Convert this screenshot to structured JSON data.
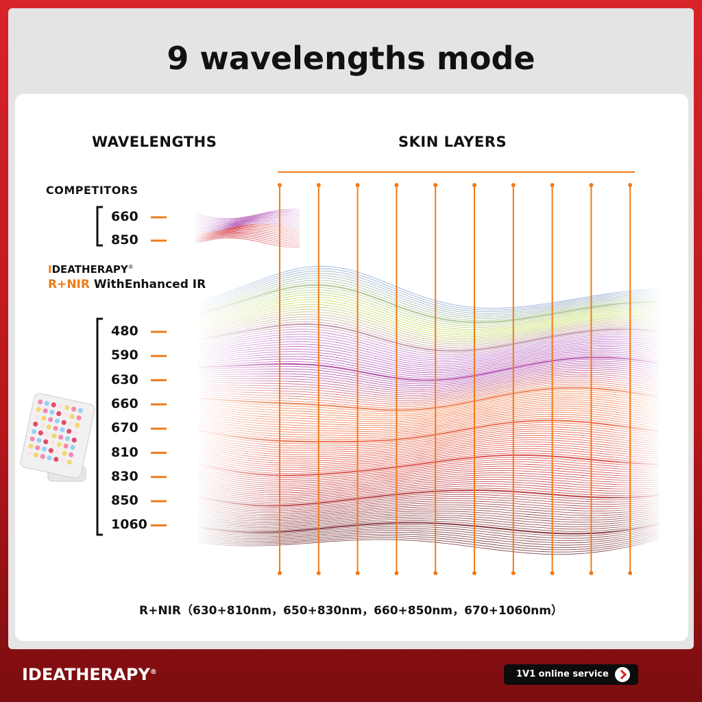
{
  "title": "9 wavelengths mode",
  "headers": {
    "wavelengths": "WAVELENGTHS",
    "skin_layers": "SKIN LAYERS"
  },
  "competitors": {
    "label": "COMPETITORS",
    "wavelengths": [
      "660",
      "850"
    ]
  },
  "brand_block": {
    "brand": "IDEATHERAPY",
    "registered": "®",
    "mode": "R+NIR",
    "mode_detail": "WithEnhanced IR"
  },
  "wavelengths": [
    "480",
    "590",
    "630",
    "660",
    "670",
    "810",
    "830",
    "850",
    "1060"
  ],
  "footnote": "R+NIR（630+810nm，650+830nm，660+850nm，670+1060nm）",
  "footer": {
    "brand": "IDEATHERAPY",
    "registered": "®",
    "service_button": "1V1 online service"
  }
}
